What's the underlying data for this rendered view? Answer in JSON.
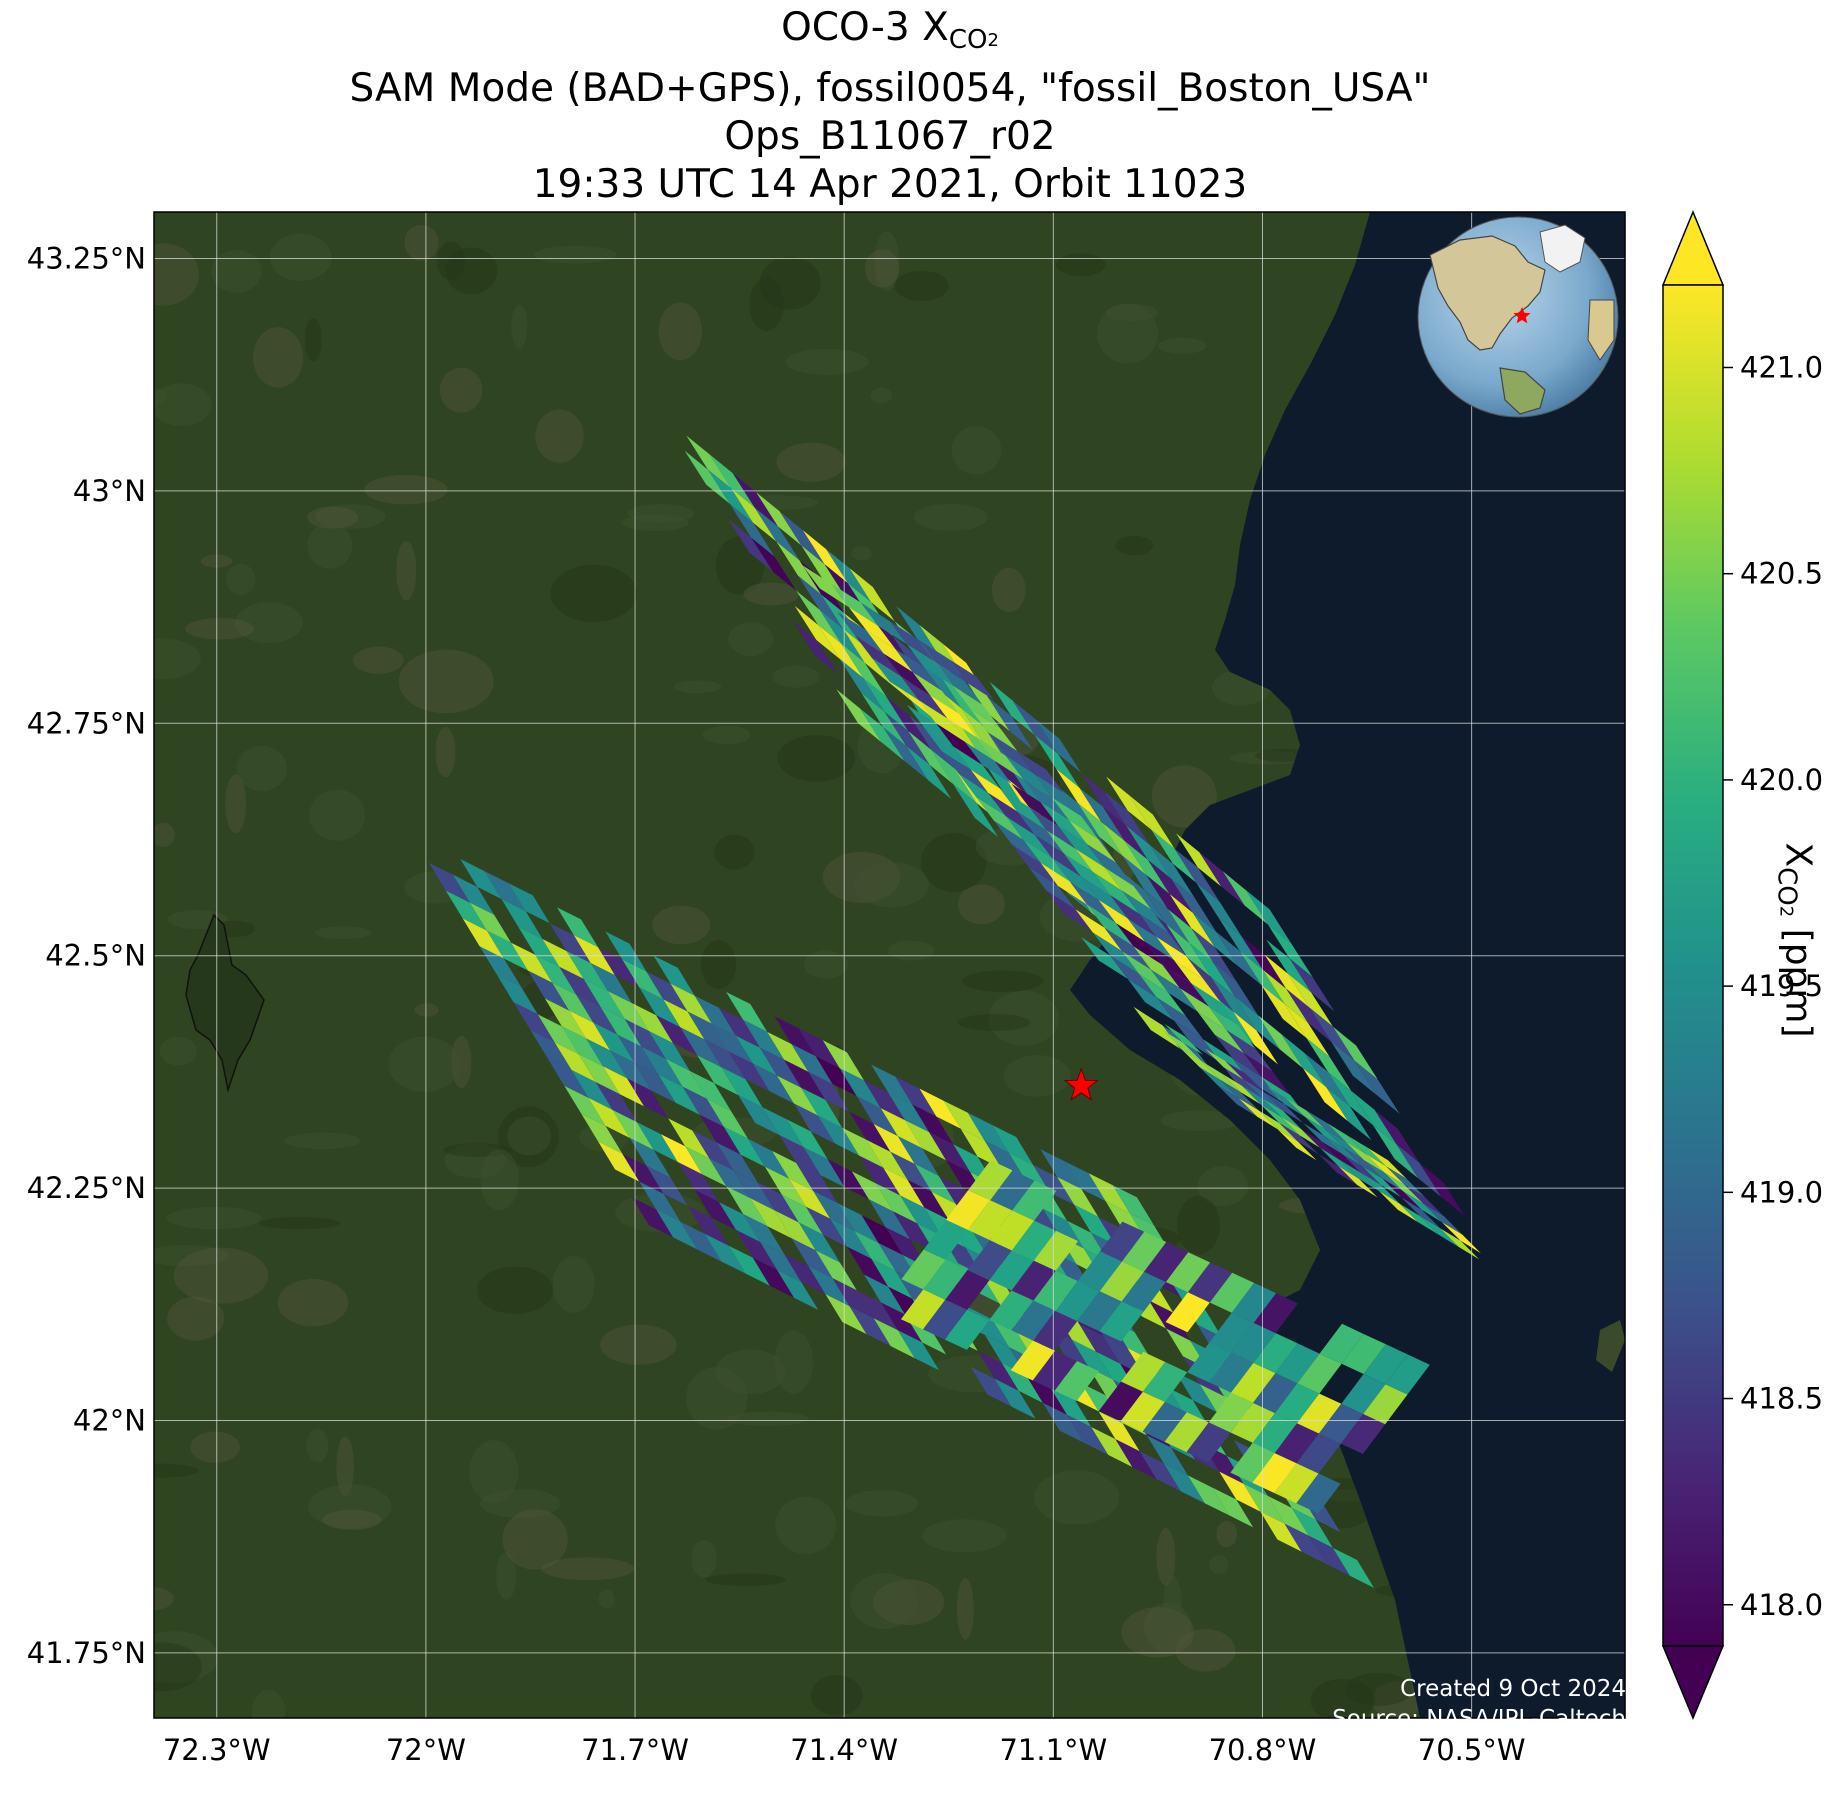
{
  "title": {
    "line1_prefix": "OCO-3 X",
    "line1_sub": "CO",
    "line1_sub2": "2",
    "line2": "SAM Mode (BAD+GPS), fossil0054, \"fossil_Boston_USA\"",
    "line3": "Ops_B11067_r02",
    "line4": "19:33 UTC 14 Apr 2021, Orbit 11023"
  },
  "map": {
    "lon_ticks": [
      "72.3°W",
      "72°W",
      "71.7°W",
      "71.4°W",
      "71.1°W",
      "70.8°W",
      "70.5°W"
    ],
    "lat_ticks": [
      "43.25°N",
      "43°N",
      "42.75°N",
      "42.5°N",
      "42.25°N",
      "42°N",
      "41.75°N"
    ],
    "lon_range": [
      -72.39,
      -70.28
    ],
    "lat_range": [
      41.68,
      43.3
    ],
    "target_marker": {
      "lon": -71.06,
      "lat": 42.36,
      "color": "#ff0000",
      "symbol": "star-icon"
    },
    "land_color": "#2f4420",
    "ocean_color": "#0d1b2c"
  },
  "chart_data": {
    "type": "heatmap",
    "variable": "XCO2",
    "units": "ppm",
    "colormap": "viridis",
    "vmin": 417.9,
    "vmax": 421.2,
    "colorbar_ticks": [
      418.0,
      418.5,
      419.0,
      419.5,
      420.0,
      420.5,
      421.0
    ],
    "colorbar_extend": "both",
    "swaths": [
      {
        "start": [
          -71.66,
          43.08
        ],
        "end": [
          -70.79,
          42.55
        ],
        "across_dir": [
          0.28,
          -0.33
        ],
        "along_count": 26,
        "across_count": 9
      },
      {
        "start": [
          -71.46,
          42.92
        ],
        "end": [
          -70.96,
          42.42
        ],
        "across_dir": [
          0.25,
          -0.12
        ],
        "along_count": 20,
        "across_count": 6
      },
      {
        "start": [
          -72.02,
          42.63
        ],
        "end": [
          -70.98,
          42.24
        ],
        "across_dir": [
          0.34,
          -0.42
        ],
        "along_count": 30,
        "across_count": 14
      },
      {
        "start": [
          -71.35,
          42.12
        ],
        "end": [
          -70.72,
          41.9
        ],
        "across_dir": [
          0.16,
          0.16
        ],
        "along_count": 20,
        "across_count": 5
      },
      {
        "start": [
          -70.97,
          42.44
        ],
        "end": [
          -70.62,
          42.28
        ],
        "across_dir": [
          0.16,
          -0.12
        ],
        "along_count": 12,
        "across_count": 6
      }
    ]
  },
  "colorbar": {
    "tick_labels": [
      "421.0",
      "420.5",
      "420.0",
      "419.5",
      "419.0",
      "418.5",
      "418.0"
    ],
    "label_prefix": "X",
    "label_sub": "CO",
    "label_sub2": "2",
    "label_suffix": " [ppm]"
  },
  "credits": {
    "line1": "Created 9 Oct 2024",
    "line2": "Source: NASA/JPL-Caltech"
  }
}
